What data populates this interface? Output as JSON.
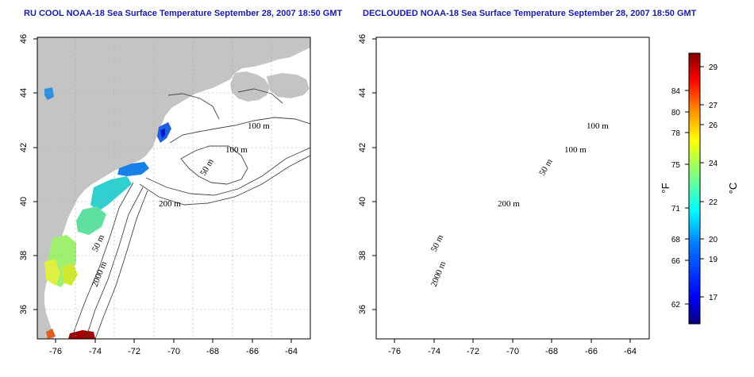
{
  "maps": [
    {
      "title": "RU COOL NOAA-18 Sea Surface Temperature September 28, 2007 18:50 GMT",
      "contour_labels": [
        "100 m",
        "100 m",
        "50 m",
        "200 m",
        "50 m",
        "2000 m"
      ]
    },
    {
      "title": "DECLOUDED NOAA-18 Sea Surface Temperature September 28, 2007 18:50 GMT",
      "contour_labels": [
        "100 m",
        "100 m",
        "50 m",
        "200 m",
        "50 m",
        "2000 m"
      ]
    }
  ],
  "axes": {
    "lon_ticks": [
      "-76",
      "-74",
      "-72",
      "-70",
      "-68",
      "-66",
      "-64"
    ],
    "lat_ticks": [
      "36",
      "38",
      "40",
      "42",
      "44",
      "46"
    ]
  },
  "colorbar": {
    "unit_f": "°F",
    "unit_c": "°C",
    "f_ticks": [
      "84",
      "80",
      "78",
      "75",
      "71",
      "68",
      "66",
      "62"
    ],
    "c_ticks": [
      "29",
      "27",
      "26",
      "24",
      "22",
      "20",
      "19",
      "17"
    ],
    "colors": [
      "#08007a",
      "#0000ff",
      "#0080ff",
      "#00ffff",
      "#80ff80",
      "#ffff00",
      "#ff8000",
      "#ff0000",
      "#800000"
    ]
  }
}
